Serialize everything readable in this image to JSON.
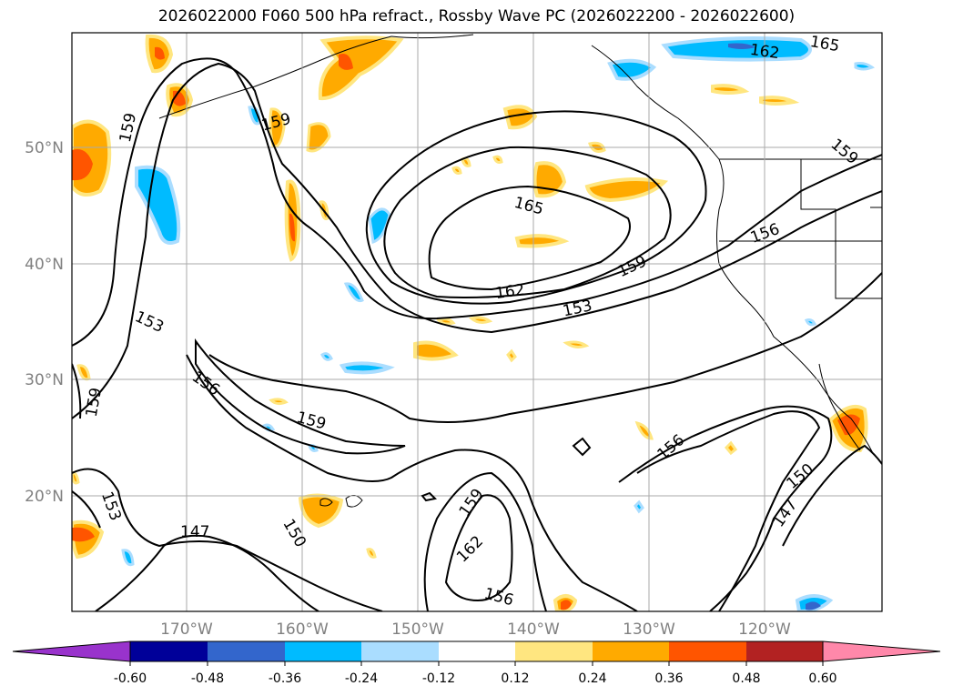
{
  "title": "2026022000 F060 500 hPa refract., Rossby Wave PC (2026022200 - 2026022600)",
  "map": {
    "lat_labels": [
      "50°N",
      "40°N",
      "30°N",
      "20°N"
    ],
    "lon_labels": [
      "170°W",
      "160°W",
      "150°W",
      "140°W",
      "130°W",
      "120°W"
    ],
    "contour_labels": [
      "165",
      "162",
      "159",
      "156",
      "153",
      "150",
      "147"
    ],
    "contour_color": "#000000",
    "grid": true
  },
  "colorbar": {
    "ticks": [
      "-0.60",
      "-0.48",
      "-0.36",
      "-0.24",
      "-0.12",
      "0.12",
      "0.24",
      "0.36",
      "0.48",
      "0.60"
    ],
    "colors": [
      "#9933cc",
      "#000099",
      "#3366cc",
      "#00bbff",
      "#aaddff",
      "#ffffff",
      "#ffe680",
      "#ffaa00",
      "#ff5500",
      "#b22222",
      "#ff88aa"
    ]
  }
}
